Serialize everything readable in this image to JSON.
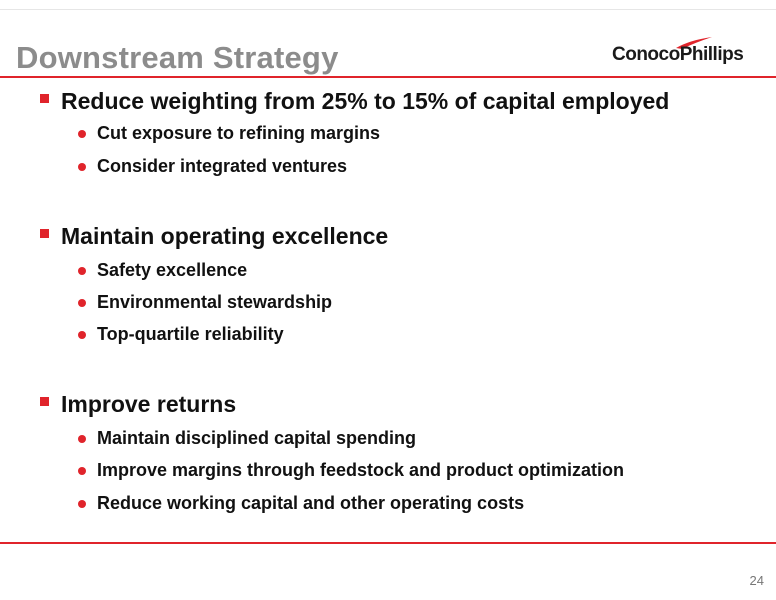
{
  "slide": {
    "title": "Downstream Strategy",
    "page_number": "24",
    "accent_color": "#e0242b"
  },
  "logo": {
    "text": "ConocoPhillips",
    "icon": "swoosh-icon"
  },
  "sections": [
    {
      "heading": "Reduce weighting from 25% to 15% of capital employed",
      "items": [
        "Cut exposure to refining margins",
        "Consider integrated ventures"
      ]
    },
    {
      "heading": "Maintain operating excellence",
      "items": [
        "Safety excellence",
        "Environmental stewardship",
        "Top-quartile reliability"
      ]
    },
    {
      "heading": "Improve returns",
      "items": [
        "Maintain disciplined capital spending",
        "Improve margins through feedstock and product optimization",
        "Reduce working capital and other operating costs"
      ]
    }
  ]
}
